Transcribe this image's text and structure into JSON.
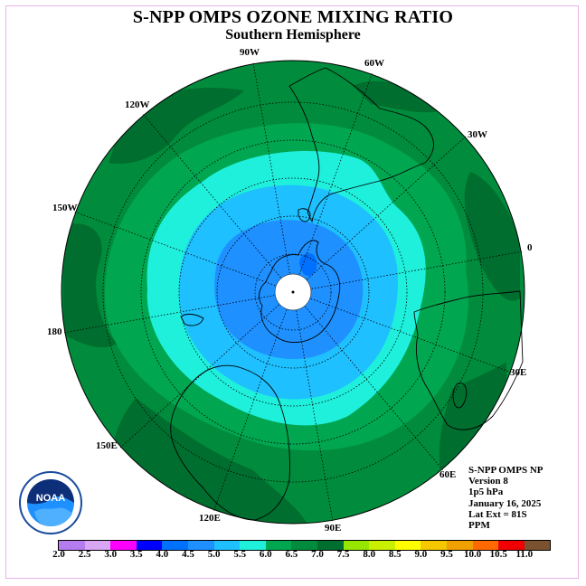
{
  "title": "S-NPP OMPS OZONE MIXING RATIO",
  "subtitle": "Southern Hemisphere",
  "longitude_labels": [
    "90W",
    "60W",
    "30W",
    "0",
    "30E",
    "60E",
    "90E",
    "120E",
    "150E",
    "180",
    "150W",
    "120W"
  ],
  "info": {
    "instrument": "S-NPP OMPS NP",
    "version": "Version 8",
    "pressure": "1p5 hPa",
    "date": "January 16, 2025",
    "lat_ext": "Lat Ext = 81S",
    "units": "PPM"
  },
  "logo_text": "NOAA",
  "colorbar": {
    "ticks": [
      "2.0",
      "2.5",
      "3.0",
      "3.5",
      "4.0",
      "4.5",
      "5.0",
      "5.5",
      "6.0",
      "6.5",
      "7.0",
      "7.5",
      "8.0",
      "8.5",
      "9.0",
      "9.5",
      "10.0",
      "10.5",
      "11.0"
    ],
    "colors": [
      "#b57cf0",
      "#d9a6f5",
      "#ff00ff",
      "#0000ff",
      "#0070ff",
      "#1e90ff",
      "#1ec0ff",
      "#1ef0dc",
      "#00a650",
      "#008c3c",
      "#006e2e",
      "#96e600",
      "#c8f000",
      "#ffff00",
      "#f5c800",
      "#f0a000",
      "#ff6a00",
      "#f00000",
      "#7a5230"
    ]
  }
}
